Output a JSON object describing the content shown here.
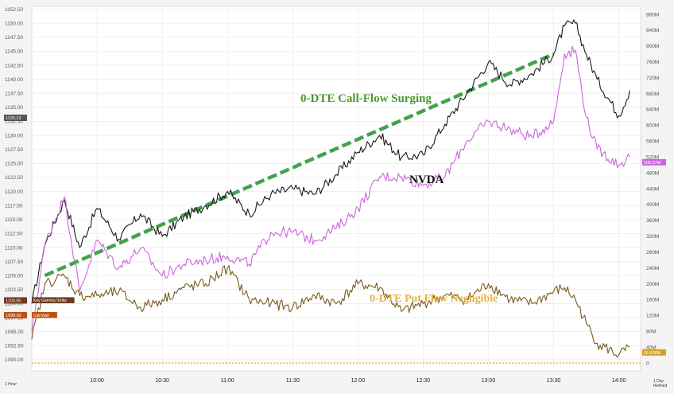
{
  "chart_data": {
    "type": "line",
    "title": "",
    "xlabel": "",
    "ylabel": "",
    "x_ticks": [
      "10:00",
      "10:30",
      "11:00",
      "11:30",
      "12:00",
      "12:30",
      "13:00",
      "13:30",
      "14:00"
    ],
    "x_corner_left": "1 Hour",
    "x_corner_right": "1 Day Refined",
    "y_left_ticks": [
      "1152.50",
      "1150.00",
      "1147.50",
      "1145.00",
      "1142.50",
      "1140.00",
      "1137.50",
      "1135.00",
      "1132.50",
      "1130.00",
      "1127.50",
      "1125.00",
      "1122.50",
      "1120.00",
      "1117.50",
      "1115.00",
      "1112.50",
      "1110.00",
      "1107.50",
      "1105.00",
      "1102.50",
      "1100.00",
      "1097.50",
      "1095.00",
      "1092.50",
      "1090.00"
    ],
    "y_right_ticks": [
      "880M",
      "840M",
      "800M",
      "760M",
      "720M",
      "680M",
      "640M",
      "600M",
      "560M",
      "520M",
      "480M",
      "440M",
      "400M",
      "360M",
      "320M",
      "280M",
      "240M",
      "200M",
      "160M",
      "120M",
      "80M",
      "40M",
      "0"
    ],
    "y_left_range": [
      1088,
      1153
    ],
    "y_right_range": [
      -20,
      900
    ],
    "grid": true,
    "series": [
      {
        "name": "NVDA",
        "axis": "left",
        "color": "#1a1a1a",
        "x": [
          "09:30",
          "09:36",
          "09:45",
          "09:52",
          "10:00",
          "10:10",
          "10:20",
          "10:30",
          "10:40",
          "10:50",
          "11:00",
          "11:10",
          "11:20",
          "11:30",
          "11:40",
          "11:50",
          "12:00",
          "12:10",
          "12:20",
          "12:30",
          "12:40",
          "12:50",
          "13:00",
          "13:10",
          "13:20",
          "13:30",
          "13:35",
          "13:40",
          "13:45",
          "13:50",
          "14:00",
          "14:05"
        ],
        "values": [
          1100.0,
          1110.5,
          1118.5,
          1110.0,
          1117.0,
          1111.5,
          1116.0,
          1112.0,
          1115.5,
          1117.5,
          1120.0,
          1116.0,
          1119.5,
          1120.5,
          1119.5,
          1123.0,
          1127.0,
          1130.0,
          1126.0,
          1126.5,
          1132.0,
          1137.5,
          1143.0,
          1139.0,
          1141.0,
          1144.5,
          1149.5,
          1150.0,
          1144.5,
          1140.0,
          1133.5,
          1138.0
        ]
      },
      {
        "name": "",
        "axis": "right",
        "color": "#cc66dd",
        "x": [
          "09:30",
          "09:36",
          "09:45",
          "09:52",
          "10:00",
          "10:10",
          "10:20",
          "10:30",
          "10:40",
          "10:50",
          "11:00",
          "11:10",
          "11:20",
          "11:30",
          "11:40",
          "11:50",
          "12:00",
          "12:10",
          "12:20",
          "12:30",
          "12:40",
          "12:50",
          "13:00",
          "13:10",
          "13:20",
          "13:30",
          "13:35",
          "13:40",
          "13:45",
          "13:50",
          "14:00",
          "14:05"
        ],
        "values": [
          80,
          300,
          420,
          180,
          310,
          240,
          290,
          220,
          250,
          260,
          270,
          250,
          330,
          330,
          310,
          340,
          390,
          470,
          470,
          450,
          470,
          560,
          610,
          590,
          570,
          610,
          780,
          790,
          620,
          540,
          500,
          520
        ]
      },
      {
        "name": "",
        "axis": "right",
        "color": "#7a5a1e",
        "x": [
          "09:30",
          "09:36",
          "09:45",
          "09:52",
          "10:00",
          "10:10",
          "10:20",
          "10:30",
          "10:40",
          "10:50",
          "11:00",
          "11:10",
          "11:20",
          "11:30",
          "11:40",
          "11:50",
          "12:00",
          "12:10",
          "12:20",
          "12:30",
          "12:40",
          "12:50",
          "13:00",
          "13:10",
          "13:20",
          "13:30",
          "13:35",
          "13:40",
          "13:45",
          "13:50",
          "14:00",
          "14:05"
        ],
        "values": [
          60,
          200,
          220,
          170,
          170,
          180,
          140,
          160,
          190,
          200,
          240,
          160,
          150,
          140,
          170,
          150,
          200,
          190,
          130,
          150,
          170,
          160,
          200,
          160,
          150,
          180,
          190,
          160,
          100,
          50,
          20,
          40
        ]
      }
    ],
    "trendlines": [
      {
        "label": "0-DTE Call-Flow Surging",
        "color": "#2f9a3a",
        "style": "dashed",
        "from_x": "09:36",
        "from_y": 1105.0,
        "to_x": "13:30",
        "to_y": 1144.5
      },
      {
        "label": "0-DTE Put Flow Negligible",
        "color": "#f0b020",
        "style": "dotted",
        "axis": "right",
        "y": 0
      }
    ],
    "annotations": [
      {
        "text": "0-DTE Call-Flow Surging",
        "color": "#4a9a2a"
      },
      {
        "text": "NVDA",
        "color": "#111111"
      },
      {
        "text": "0-DTE Put Flow Negligible",
        "color": "#e6b23c"
      }
    ],
    "level_labels": [
      {
        "text": "Key Gamma Strike",
        "value": 1100.0,
        "color": "#6b3a20"
      },
      {
        "text": "Call Wall",
        "value": 1098.5,
        "color": "#c05010"
      }
    ],
    "price_tags": [
      {
        "text": "1100.00",
        "value": 1100.0,
        "color": "#6b3a20"
      },
      {
        "text": "1098.50",
        "value": 1098.5,
        "color": "#c05010"
      },
      {
        "text": "1133.13",
        "value": 1133.13,
        "color": "#555555"
      }
    ],
    "right_tags": [
      {
        "text": "506.57M",
        "value": 506.57,
        "color": "#cc66dd"
      },
      {
        "text": "26.698M",
        "value": 26.698,
        "color": "#d4a020"
      }
    ]
  }
}
